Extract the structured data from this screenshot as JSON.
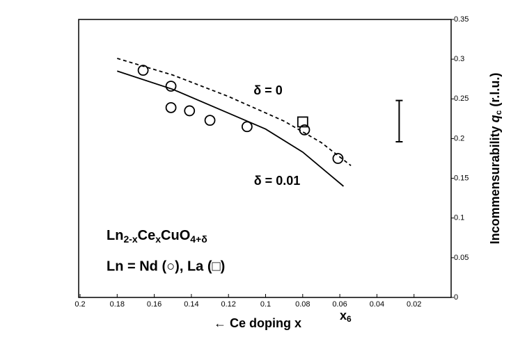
{
  "chart_data": {
    "type": "scatter",
    "xlim": [
      0.2,
      0
    ],
    "ylim": [
      0,
      0.35
    ],
    "xticks": [
      0.2,
      0.18,
      0.16,
      0.14,
      0.12,
      0.1,
      0.08,
      0.06,
      0.04,
      0.02
    ],
    "yticks": [
      0,
      0.05,
      0.1,
      0.15,
      0.2,
      0.25,
      0.3,
      0.35
    ],
    "x_label": "← Ce doping x",
    "x_label_extra": [
      "x",
      "6"
    ],
    "y_label": [
      "Incommensurability ",
      "q",
      "c",
      " (r.l.u.)"
    ],
    "formula": [
      "Ln",
      "2-x",
      "Ce",
      "x",
      "CuO",
      "4+δ"
    ],
    "legend_text": "Ln = Nd (○), La (□)",
    "lines": [
      {
        "name": "δ = 0",
        "dash": true,
        "color": "#000000",
        "x": [
          0.18,
          0.15,
          0.12,
          0.09,
          0.07,
          0.054
        ],
        "values": [
          0.301,
          0.28,
          0.253,
          0.222,
          0.195,
          0.166
        ]
      },
      {
        "name": "δ = 0.01",
        "dash": false,
        "color": "#000000",
        "x": [
          0.18,
          0.15,
          0.12,
          0.1,
          0.08,
          0.058
        ],
        "values": [
          0.285,
          0.262,
          0.232,
          0.212,
          0.183,
          0.14
        ]
      }
    ],
    "series": [
      {
        "marker": "circle",
        "color": "#000000",
        "x": [
          0.166,
          0.151,
          0.151,
          0.141,
          0.13,
          0.11,
          0.079,
          0.061
        ],
        "values": [
          0.286,
          0.266,
          0.239,
          0.235,
          0.223,
          0.215,
          0.211,
          0.175
        ]
      },
      {
        "marker": "square",
        "color": "#000000",
        "x": [
          0.08
        ],
        "values": [
          0.221
        ]
      }
    ],
    "error_bar": {
      "x": 0.028,
      "value": 0.222,
      "error": 0.026
    }
  }
}
